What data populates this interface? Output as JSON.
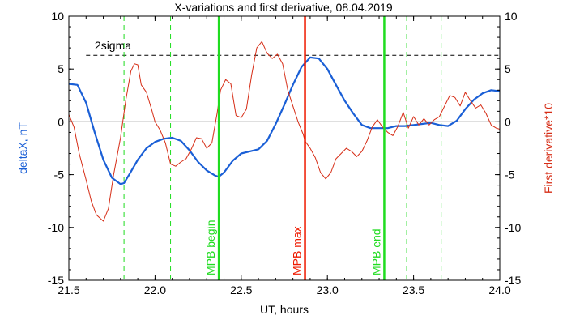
{
  "chart_data": {
    "type": "line",
    "title": "X-variations and first derivative, 08.04.2019",
    "xlabel": "UT, hours",
    "ylabel_left": "deltaX, nT",
    "ylabel_right": "First derivative*10",
    "xlim": [
      21.5,
      24.0
    ],
    "ylim": [
      -15,
      10
    ],
    "x_ticks": [
      "21.5",
      "22.0",
      "22.5",
      "23.0",
      "23.5",
      "24.0"
    ],
    "y_ticks": [
      "10",
      "5",
      "0",
      "-5",
      "-10",
      "-15"
    ],
    "y_ticks_right": [
      "10",
      "5",
      "0",
      "-5",
      "-10",
      "-15"
    ],
    "sigma_line": {
      "label": "2sigma",
      "value": 6.3
    },
    "colors": {
      "deltaX": "#1a5fd6",
      "derivative": "#d62d16",
      "mpb_max": "#ee1a00",
      "mpb_edges": "#20dc20",
      "dashed_green": "#20dc20"
    },
    "vertical_lines": [
      {
        "x": 22.37,
        "label": "MPB begin",
        "color": "#20dc20"
      },
      {
        "x": 22.87,
        "label": "MPB max",
        "color": "#ee1a00"
      },
      {
        "x": 23.33,
        "label": "MPB end",
        "color": "#20dc20"
      }
    ],
    "dashed_lines_x": [
      21.82,
      22.09,
      23.46,
      23.66
    ],
    "series": [
      {
        "name": "deltaX",
        "color": "#1a5fd6",
        "x": [
          21.5,
          21.55,
          21.6,
          21.65,
          21.7,
          21.75,
          21.8,
          21.82,
          21.85,
          21.9,
          21.95,
          22.0,
          22.05,
          22.1,
          22.15,
          22.2,
          22.25,
          22.3,
          22.35,
          22.37,
          22.4,
          22.45,
          22.5,
          22.55,
          22.6,
          22.65,
          22.7,
          22.75,
          22.8,
          22.85,
          22.9,
          22.95,
          23.0,
          23.05,
          23.1,
          23.15,
          23.2,
          23.25,
          23.3,
          23.35,
          23.4,
          23.45,
          23.5,
          23.55,
          23.6,
          23.65,
          23.7,
          23.75,
          23.8,
          23.85,
          23.9,
          23.95,
          24.0
        ],
        "values": [
          3.6,
          3.5,
          1.8,
          -1.0,
          -3.6,
          -5.3,
          -5.9,
          -5.8,
          -5.0,
          -3.6,
          -2.5,
          -1.9,
          -1.6,
          -1.5,
          -1.8,
          -2.7,
          -3.8,
          -4.6,
          -5.1,
          -5.2,
          -4.8,
          -3.7,
          -3.0,
          -2.8,
          -2.6,
          -1.8,
          -0.2,
          1.6,
          3.5,
          5.2,
          6.1,
          6.0,
          5.0,
          3.5,
          2.0,
          0.8,
          -0.3,
          -0.6,
          -0.6,
          -0.6,
          -0.4,
          -0.4,
          -0.3,
          -0.2,
          -0.1,
          -0.3,
          -0.4,
          0.1,
          1.2,
          2.1,
          2.7,
          3.0,
          2.9
        ]
      },
      {
        "name": "derivative",
        "color": "#d62d16",
        "x": [
          21.5,
          21.53,
          21.56,
          21.6,
          21.63,
          21.66,
          21.7,
          21.73,
          21.76,
          21.8,
          21.83,
          21.86,
          21.88,
          21.9,
          21.92,
          21.95,
          21.98,
          22.0,
          22.03,
          22.06,
          22.09,
          22.12,
          22.15,
          22.18,
          22.21,
          22.24,
          22.27,
          22.3,
          22.33,
          22.36,
          22.38,
          22.41,
          22.44,
          22.47,
          22.5,
          22.53,
          22.56,
          22.59,
          22.62,
          22.65,
          22.68,
          22.71,
          22.74,
          22.77,
          22.8,
          22.83,
          22.86,
          22.87,
          22.9,
          22.93,
          22.96,
          22.99,
          23.02,
          23.05,
          23.08,
          23.11,
          23.14,
          23.17,
          23.2,
          23.23,
          23.26,
          23.29,
          23.32,
          23.35,
          23.38,
          23.41,
          23.44,
          23.47,
          23.5,
          23.53,
          23.56,
          23.59,
          23.62,
          23.65,
          23.68,
          23.71,
          23.74,
          23.77,
          23.8,
          23.83,
          23.86,
          23.89,
          23.92,
          23.95,
          23.98,
          24.0
        ],
        "values": [
          0.7,
          -0.5,
          -3.0,
          -5.5,
          -7.5,
          -8.8,
          -9.4,
          -8.2,
          -5.0,
          -1.5,
          2.0,
          4.8,
          5.5,
          5.4,
          3.5,
          2.8,
          1.2,
          0.0,
          -0.8,
          -2.0,
          -4.0,
          -4.2,
          -3.8,
          -3.5,
          -2.6,
          -1.5,
          -1.6,
          -2.5,
          -2.0,
          0.8,
          3.0,
          4.0,
          3.6,
          0.6,
          0.4,
          1.2,
          4.4,
          7.0,
          7.6,
          6.5,
          6.0,
          6.4,
          5.5,
          3.0,
          1.5,
          0.0,
          -1.2,
          -1.8,
          -2.5,
          -3.4,
          -4.8,
          -5.4,
          -4.8,
          -3.5,
          -3.0,
          -2.5,
          -2.8,
          -3.3,
          -2.8,
          -1.8,
          -0.5,
          0.2,
          -0.5,
          -1.0,
          -1.3,
          -0.4,
          0.9,
          -0.6,
          0.5,
          -0.3,
          0.3,
          -0.3,
          0.2,
          0.5,
          1.5,
          2.5,
          2.3,
          1.5,
          2.8,
          2.0,
          1.3,
          1.6,
          0.8,
          -0.3,
          -0.6,
          -0.7
        ]
      }
    ],
    "zero_line": true,
    "grid": false
  }
}
